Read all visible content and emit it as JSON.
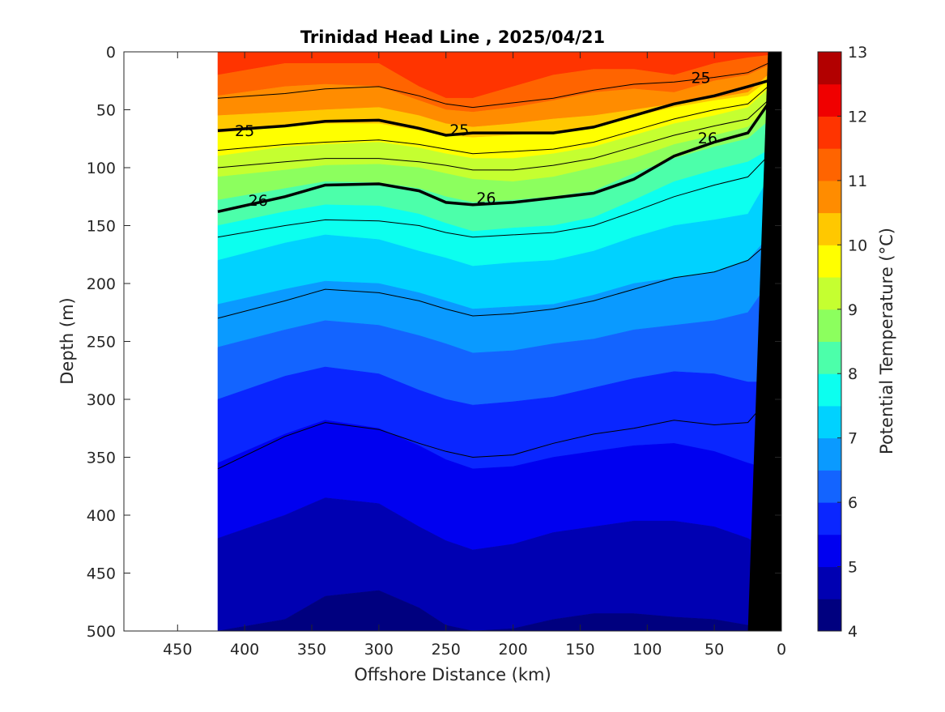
{
  "chart_data": {
    "type": "filled-contour",
    "title": "Trinidad Head Line , 2025/04/21",
    "xlabel": "Offshore Distance (km)",
    "ylabel": "Depth (m)",
    "colorbar_label": "Potential Temperature (°C)",
    "xlim": [
      490,
      0
    ],
    "ylim": [
      500,
      0
    ],
    "x_ticks": [
      450,
      400,
      350,
      300,
      250,
      200,
      150,
      100,
      50,
      0
    ],
    "y_ticks": [
      0,
      50,
      100,
      150,
      200,
      250,
      300,
      350,
      400,
      450,
      500
    ],
    "colorbar_ticks": [
      4,
      5,
      6,
      7,
      8,
      9,
      10,
      11,
      12,
      13
    ],
    "colorbar_levels": [
      {
        "from": 4.0,
        "to": 4.5,
        "color": "#00007f"
      },
      {
        "from": 4.5,
        "to": 5.0,
        "color": "#0000b2"
      },
      {
        "from": 5.0,
        "to": 5.5,
        "color": "#0000f0"
      },
      {
        "from": 5.5,
        "to": 6.0,
        "color": "#0a26ff"
      },
      {
        "from": 6.0,
        "to": 6.5,
        "color": "#1364ff"
      },
      {
        "from": 6.5,
        "to": 7.0,
        "color": "#0a9aff"
      },
      {
        "from": 7.0,
        "to": 7.5,
        "color": "#00d2ff"
      },
      {
        "from": 7.5,
        "to": 8.0,
        "color": "#0cffef"
      },
      {
        "from": 8.0,
        "to": 8.5,
        "color": "#4cffaa"
      },
      {
        "from": 8.5,
        "to": 9.0,
        "color": "#8cff5e"
      },
      {
        "from": 9.0,
        "to": 9.5,
        "color": "#c5ff30"
      },
      {
        "from": 9.5,
        "to": 10.0,
        "color": "#ffff00"
      },
      {
        "from": 10.0,
        "to": 10.5,
        "color": "#ffc800"
      },
      {
        "from": 10.5,
        "to": 11.0,
        "color": "#ff8c00"
      },
      {
        "from": 11.0,
        "to": 11.5,
        "color": "#ff6400"
      },
      {
        "from": 11.5,
        "to": 12.0,
        "color": "#ff3400"
      },
      {
        "from": 12.0,
        "to": 12.5,
        "color": "#f00000"
      },
      {
        "from": 12.5,
        "to": 13.0,
        "color": "#b20000"
      }
    ],
    "x_grid_km": [
      420,
      370,
      340,
      300,
      270,
      250,
      230,
      200,
      170,
      140,
      110,
      80,
      50,
      25,
      10
    ],
    "bands": [
      {
        "temp": 11.75,
        "top": [
          0,
          0,
          0,
          0,
          0,
          0,
          0,
          0,
          0,
          0,
          0,
          0,
          0,
          0,
          0
        ],
        "bottom": [
          20,
          10,
          10,
          10,
          30,
          40,
          40,
          30,
          20,
          15,
          15,
          20,
          10,
          5,
          3
        ]
      },
      {
        "temp": 11.25,
        "bottom": [
          38,
          30,
          28,
          30,
          42,
          50,
          52,
          48,
          42,
          35,
          32,
          35,
          25,
          20,
          12
        ]
      },
      {
        "temp": 10.75,
        "bottom": [
          55,
          52,
          50,
          48,
          55,
          62,
          65,
          62,
          58,
          55,
          50,
          45,
          40,
          35,
          20
        ]
      },
      {
        "temp": 10.25,
        "bottom": [
          70,
          65,
          62,
          62,
          68,
          72,
          74,
          72,
          70,
          65,
          56,
          48,
          42,
          38,
          25
        ]
      },
      {
        "temp": 9.75,
        "bottom": [
          90,
          82,
          80,
          78,
          83,
          88,
          92,
          92,
          88,
          82,
          72,
          62,
          55,
          48,
          32
        ]
      },
      {
        "temp": 9.25,
        "bottom": [
          108,
          102,
          98,
          97,
          100,
          105,
          110,
          112,
          108,
          100,
          92,
          80,
          72,
          65,
          48
        ]
      },
      {
        "temp": 8.75,
        "bottom": [
          128,
          118,
          112,
          113,
          118,
          125,
          130,
          128,
          125,
          120,
          105,
          92,
          82,
          75,
          60
        ]
      },
      {
        "temp": 8.25,
        "bottom": [
          150,
          138,
          132,
          133,
          140,
          148,
          155,
          152,
          150,
          143,
          128,
          112,
          102,
          95,
          85
        ]
      },
      {
        "temp": 7.75,
        "bottom": [
          180,
          165,
          158,
          162,
          172,
          178,
          185,
          182,
          180,
          172,
          160,
          150,
          145,
          140,
          110
        ]
      },
      {
        "temp": 7.25,
        "bottom": [
          218,
          205,
          198,
          200,
          208,
          215,
          222,
          220,
          218,
          210,
          200,
          195,
          190,
          180,
          160
        ]
      },
      {
        "temp": 6.75,
        "bottom": [
          255,
          240,
          232,
          236,
          245,
          252,
          260,
          258,
          252,
          248,
          240,
          236,
          232,
          225,
          200
        ]
      },
      {
        "temp": 6.25,
        "bottom": [
          300,
          280,
          272,
          278,
          292,
          300,
          305,
          302,
          298,
          290,
          282,
          276,
          278,
          285,
          285
        ]
      },
      {
        "temp": 5.75,
        "bottom": [
          355,
          330,
          318,
          325,
          340,
          352,
          360,
          358,
          350,
          345,
          340,
          338,
          345,
          355,
          360
        ]
      },
      {
        "temp": 5.25,
        "bottom": [
          420,
          400,
          385,
          390,
          410,
          422,
          430,
          425,
          415,
          410,
          405,
          405,
          410,
          420,
          430
        ]
      },
      {
        "temp": 4.75,
        "bottom": [
          500,
          490,
          470,
          465,
          480,
          495,
          500,
          498,
          490,
          485,
          485,
          488,
          490,
          495,
          500
        ]
      },
      {
        "temp": 4.25,
        "bottom": [
          500,
          500,
          500,
          500,
          500,
          500,
          500,
          500,
          500,
          500,
          500,
          500,
          500,
          500,
          500
        ]
      }
    ],
    "thin_isopycnals": [
      [
        40,
        36,
        32,
        30,
        38,
        45,
        48,
        44,
        40,
        33,
        28,
        26,
        22,
        18,
        10
      ],
      [
        85,
        80,
        78,
        76,
        80,
        84,
        88,
        86,
        84,
        78,
        68,
        58,
        50,
        45,
        30
      ],
      [
        100,
        95,
        92,
        92,
        95,
        98,
        102,
        102,
        98,
        92,
        82,
        72,
        64,
        58,
        42
      ],
      [
        160,
        150,
        145,
        146,
        150,
        156,
        160,
        158,
        156,
        150,
        138,
        125,
        115,
        108,
        90
      ],
      [
        230,
        215,
        205,
        208,
        215,
        222,
        228,
        226,
        222,
        215,
        205,
        195,
        190,
        180,
        165
      ],
      [
        360,
        332,
        320,
        326,
        338,
        345,
        350,
        348,
        338,
        330,
        325,
        318,
        322,
        320,
        300
      ]
    ],
    "bold_isopycnals": [
      {
        "label": "25",
        "depths": [
          68,
          64,
          60,
          59,
          66,
          72,
          70,
          70,
          70,
          65,
          55,
          45,
          38,
          30,
          25
        ]
      },
      {
        "label": "26",
        "depths": [
          138,
          125,
          115,
          114,
          120,
          130,
          132,
          130,
          126,
          122,
          110,
          90,
          78,
          70,
          45
        ]
      }
    ],
    "contour_labels": [
      {
        "text": "25",
        "x": 400,
        "y": 68
      },
      {
        "text": "25",
        "x": 240,
        "y": 67
      },
      {
        "text": "25",
        "x": 60,
        "y": 22
      },
      {
        "text": "26",
        "x": 390,
        "y": 128
      },
      {
        "text": "26",
        "x": 220,
        "y": 126
      },
      {
        "text": "26",
        "x": 55,
        "y": 74
      }
    ],
    "bathymetry": {
      "color": "#000000",
      "x_km": [
        0,
        25,
        10,
        0
      ],
      "depth_m": [
        500,
        500,
        0,
        0
      ]
    }
  }
}
